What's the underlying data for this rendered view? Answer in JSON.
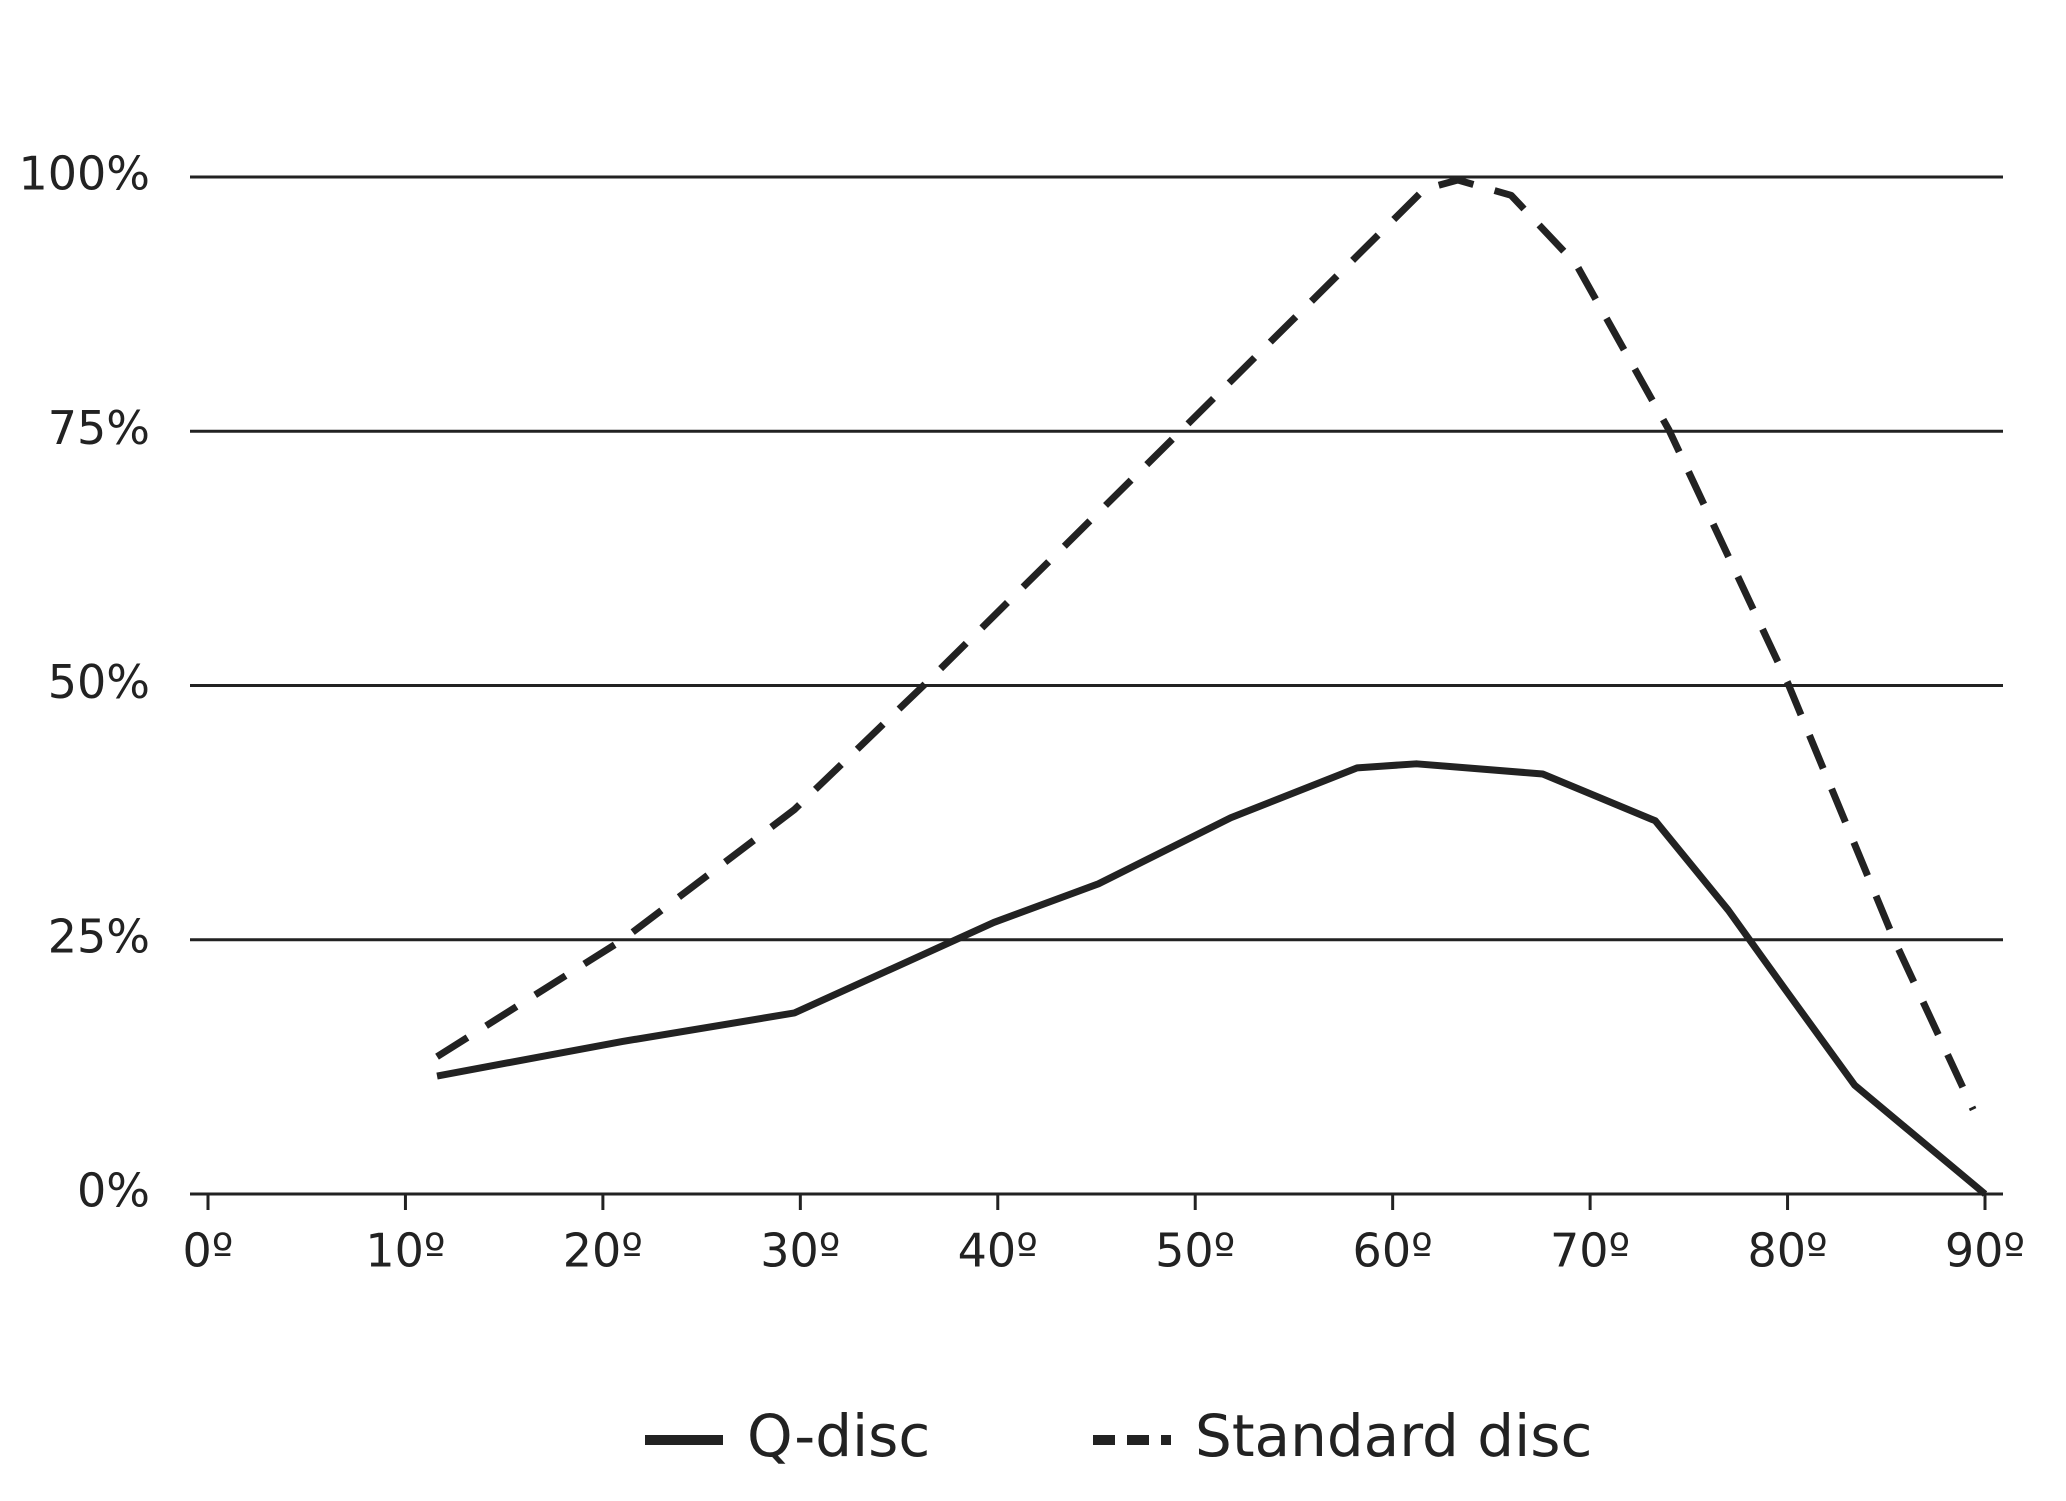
{
  "chart_data": {
    "type": "line",
    "xlim": [
      0,
      90
    ],
    "ylim": [
      0,
      100
    ],
    "xticks": [
      {
        "value": 0,
        "label": "0º"
      },
      {
        "value": 10,
        "label": "10º"
      },
      {
        "value": 20,
        "label": "20º"
      },
      {
        "value": 30,
        "label": "30º"
      },
      {
        "value": 40,
        "label": "40º"
      },
      {
        "value": 50,
        "label": "50º"
      },
      {
        "value": 60,
        "label": "60º"
      },
      {
        "value": 70,
        "label": "70º"
      },
      {
        "value": 80,
        "label": "80º"
      },
      {
        "value": 90,
        "label": "90º"
      }
    ],
    "yticks": [
      {
        "value": 0,
        "label": "0%"
      },
      {
        "value": 25,
        "label": "25%"
      },
      {
        "value": 50,
        "label": "50%"
      },
      {
        "value": 75,
        "label": "75%"
      },
      {
        "value": 100,
        "label": "100%"
      }
    ],
    "grid": true,
    "series": [
      {
        "name": "Q-disc",
        "color": "#222222",
        "dash": false,
        "x": [
          11.6,
          21,
          29.7,
          39.8,
          45.1,
          51.8,
          58.2,
          61.2,
          67.6,
          73.3,
          77,
          80,
          83.4,
          90
        ],
        "values": [
          11.6,
          15,
          17.8,
          26.7,
          30.5,
          37,
          41.9,
          42.3,
          41.3,
          36.7,
          27.9,
          19.8,
          10.7,
          0
        ]
      },
      {
        "name": "Standard disc",
        "color": "#222222",
        "dash": true,
        "x": [
          11.6,
          21,
          29.7,
          36.4,
          49.2,
          61.6,
          63.3,
          66,
          69.3,
          74,
          80,
          85.4,
          89.4
        ],
        "values": [
          13.5,
          25,
          37.8,
          50.3,
          74.9,
          98.8,
          99.7,
          98.2,
          91.4,
          75.1,
          50.3,
          25,
          8.3
        ]
      }
    ]
  }
}
